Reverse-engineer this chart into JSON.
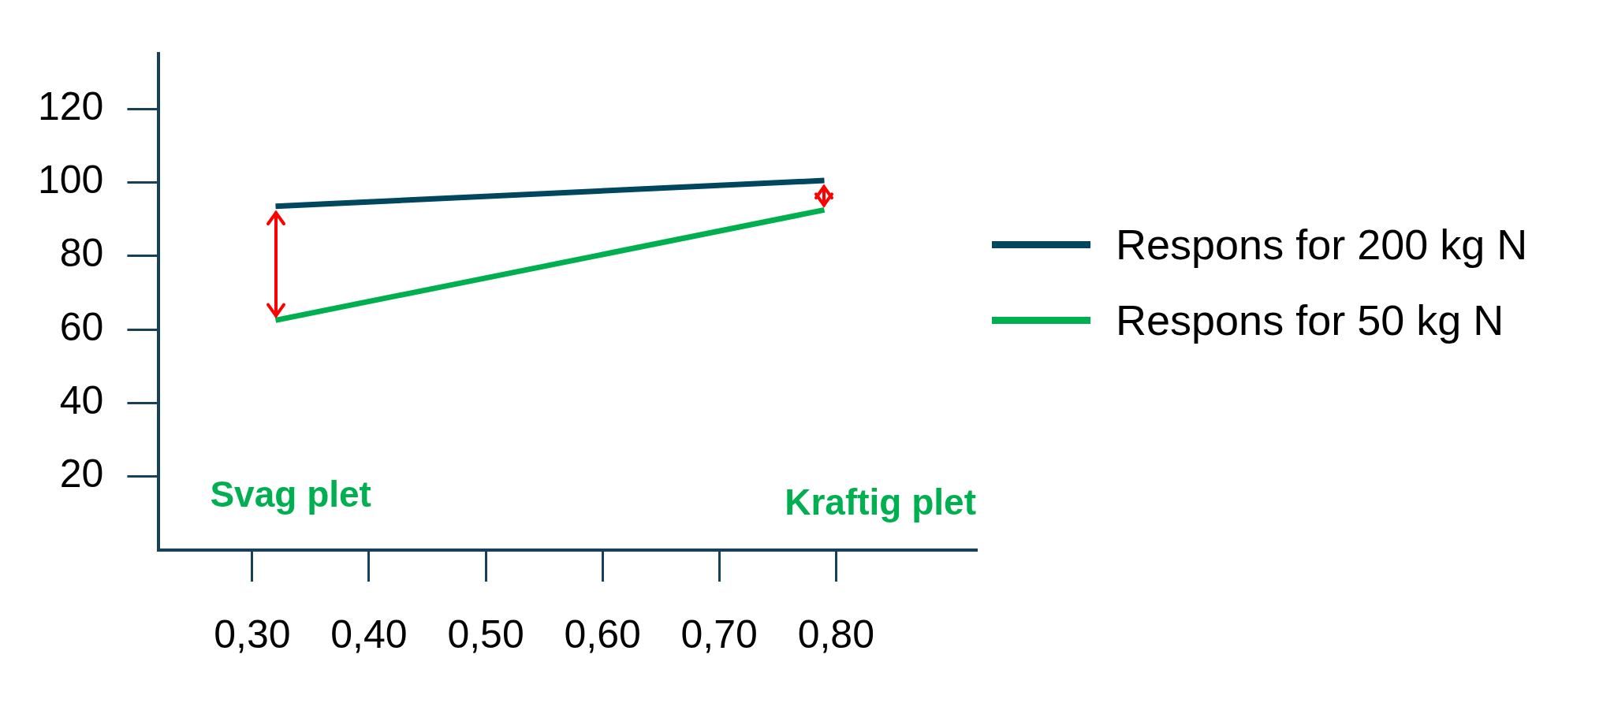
{
  "chart_data": {
    "type": "line",
    "x": [
      0.32,
      0.79
    ],
    "series": [
      {
        "name": "Respons for 200 kg N",
        "color": "#00465f",
        "values": [
          93.5,
          100.5
        ]
      },
      {
        "name": "Respons for 50 kg N",
        "color": "#00b050",
        "values": [
          62.5,
          92.5
        ]
      }
    ],
    "xlim": [
      0.22,
      0.92
    ],
    "xticks": [
      {
        "value": 0.3,
        "label": "0,30"
      },
      {
        "value": 0.4,
        "label": "0,40"
      },
      {
        "value": 0.5,
        "label": "0,50"
      },
      {
        "value": 0.6,
        "label": "0,60"
      },
      {
        "value": 0.7,
        "label": "0,70"
      },
      {
        "value": 0.8,
        "label": "0,80"
      }
    ],
    "ylim": [
      0,
      135
    ],
    "yticks": [
      20,
      40,
      60,
      80,
      100,
      120
    ],
    "annotations": [
      "Svag plet",
      "Kraftig plet"
    ],
    "legend": "right",
    "grid": false,
    "marker": "none",
    "line_style": "solid"
  }
}
